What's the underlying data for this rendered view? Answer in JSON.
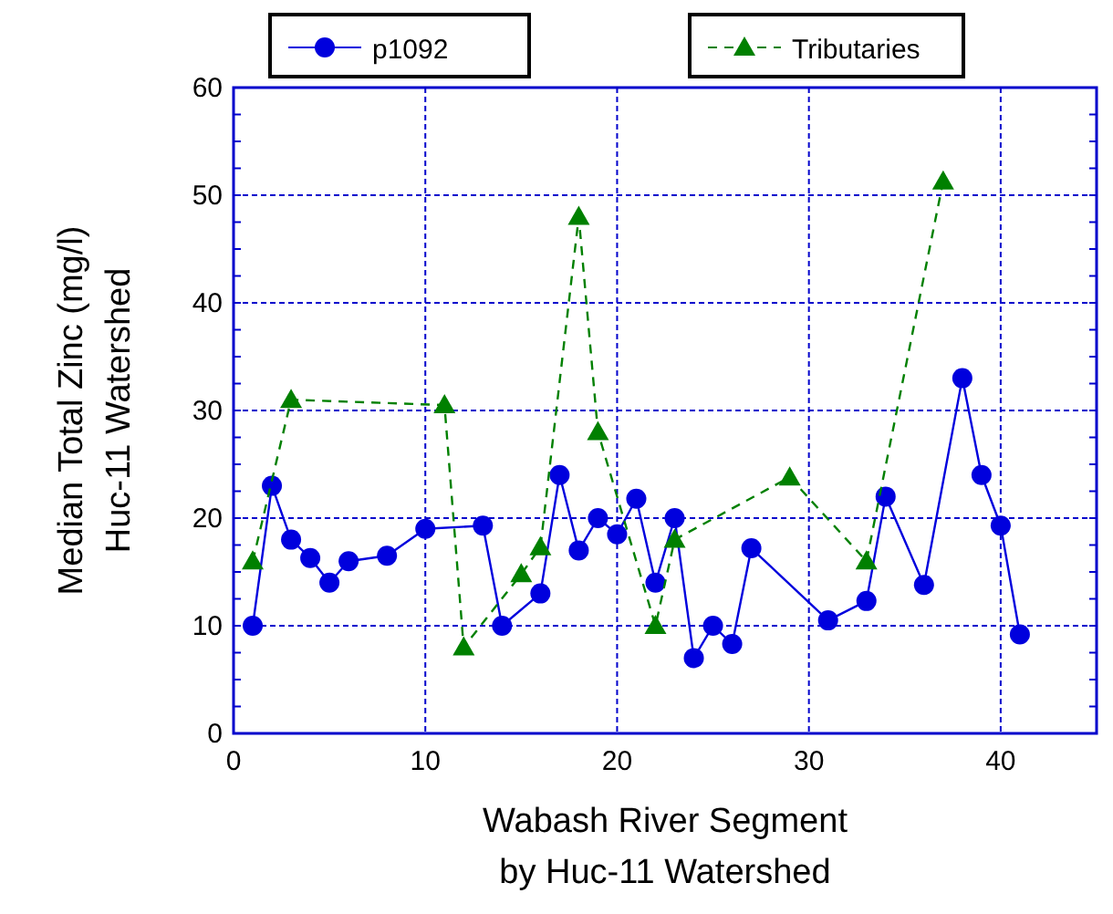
{
  "chart_data": {
    "type": "line",
    "xlabel": "Wabash River Segment\nby Huc-11 Watershed",
    "ylabel": "Median Total Zinc (mg/l)\nHuc-11 Watershed",
    "xlim": [
      0,
      45
    ],
    "xticks": [
      0,
      10,
      20,
      30,
      40
    ],
    "ylim": [
      0,
      60
    ],
    "yticks": [
      0,
      10,
      20,
      30,
      40,
      50,
      60
    ],
    "grid": true,
    "legend": "top",
    "series": [
      {
        "name": "p1092",
        "color": "#0000dd",
        "marker": "circle",
        "line_style": "solid",
        "x": [
          1,
          2,
          3,
          4,
          5,
          6,
          8,
          10,
          13,
          14,
          16,
          17,
          18,
          19,
          20,
          21,
          22,
          23,
          24,
          25,
          26,
          27,
          31,
          33,
          34,
          36,
          38,
          39,
          40,
          41
        ],
        "values": [
          10,
          23,
          18,
          16.3,
          14,
          16,
          16.5,
          19,
          19.3,
          10,
          13,
          24,
          17,
          20,
          18.5,
          21.8,
          14,
          20,
          7,
          10,
          8.3,
          17.2,
          10.5,
          12.3,
          22,
          13.8,
          33,
          24,
          19.3,
          9.2
        ]
      },
      {
        "name": "Tributaries",
        "color": "#008000",
        "marker": "triangle",
        "line_style": "dashed",
        "x": [
          1,
          3,
          11,
          12,
          15,
          16,
          18,
          19,
          22,
          23,
          29,
          33,
          37
        ],
        "values": [
          16,
          31,
          30.5,
          8,
          14.8,
          17.3,
          48,
          28,
          10,
          18,
          23.8,
          16,
          51.3
        ]
      }
    ]
  }
}
